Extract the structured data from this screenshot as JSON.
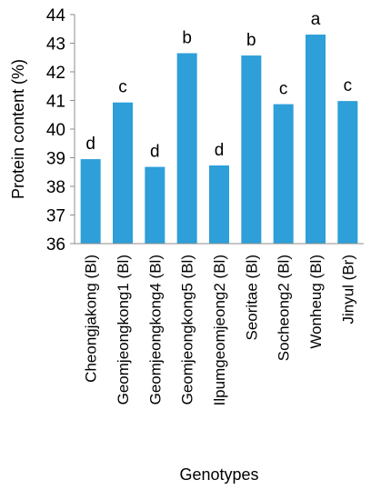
{
  "chart_data": {
    "type": "bar",
    "title": "",
    "xlabel": "Genotypes",
    "ylabel": "Protein content (%)",
    "ylim": [
      36,
      44
    ],
    "yticks": [
      36,
      37,
      38,
      39,
      40,
      41,
      42,
      43,
      44
    ],
    "grid": false,
    "legend": "none",
    "bar_color": "#2e9fd9",
    "categories": [
      "Cheongjakong (Bl)",
      "Geomjeongkong1 (Bl)",
      "Geomjeongkong4 (Bl)",
      "Geomjeongkong5 (Bl)",
      "Ilpumgeomjeong2 (Bl)",
      "Seoritae (Bl)",
      "Socheong2 (Bl)",
      "Wonheug (Bl)",
      "Jinyul (Br)"
    ],
    "values": [
      38.95,
      40.93,
      38.68,
      42.65,
      38.73,
      42.57,
      40.87,
      43.3,
      40.98
    ],
    "data_labels": [
      "d",
      "c",
      "d",
      "b",
      "d",
      "b",
      "c",
      "a",
      "c"
    ]
  }
}
